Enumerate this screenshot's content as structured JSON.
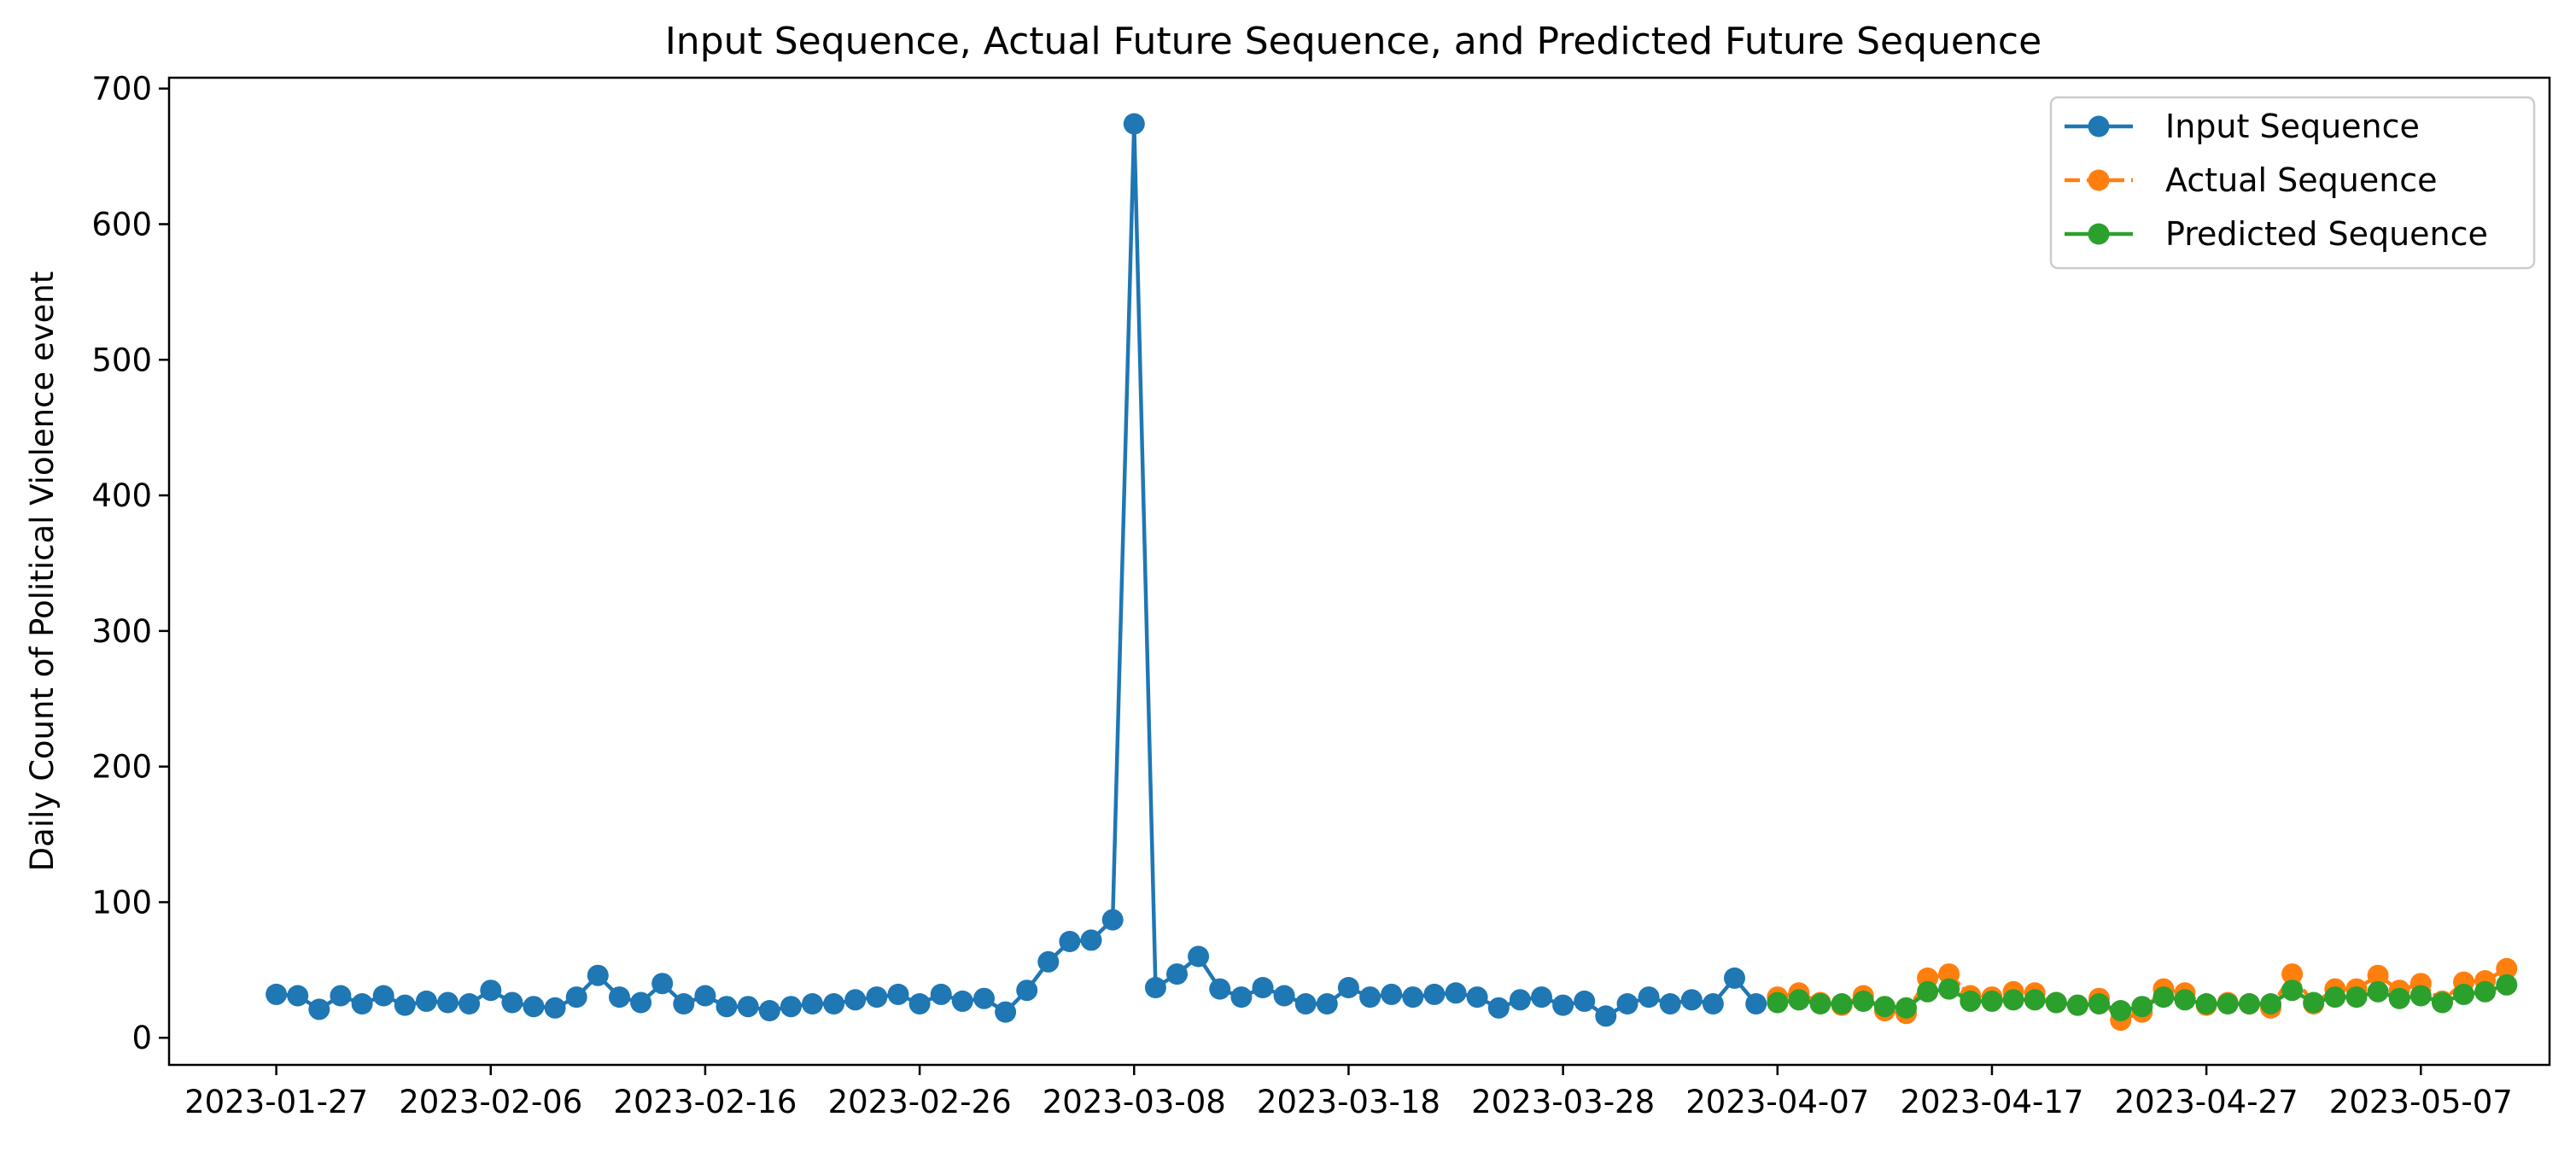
{
  "chart_data": {
    "type": "line",
    "title": "Input Sequence, Actual Future Sequence, and Predicted Future Sequence",
    "xlabel": "",
    "ylabel": "Daily Count of Political Violence event",
    "x_axis": {
      "type": "date",
      "range": [
        "2023-01-22",
        "2023-05-13"
      ],
      "tick_labels": [
        "2023-01-27",
        "2023-02-06",
        "2023-02-16",
        "2023-02-26",
        "2023-03-08",
        "2023-03-18",
        "2023-03-28",
        "2023-04-07",
        "2023-04-17",
        "2023-04-27",
        "2023-05-07"
      ]
    },
    "y_axis": {
      "range": [
        -20,
        708
      ],
      "ticks": [
        0,
        100,
        200,
        300,
        400,
        500,
        600,
        700
      ]
    },
    "legend": {
      "position": "top-right",
      "entries": [
        "Input Sequence",
        "Actual Sequence",
        "Predicted Sequence"
      ]
    },
    "grid": false,
    "series": [
      {
        "name": "Input Sequence",
        "color": "#1f77b4",
        "line_style": "solid",
        "marker": "circle",
        "start_date": "2023-01-27",
        "values": [
          32,
          31,
          21,
          31,
          25,
          31,
          24,
          27,
          26,
          25,
          35,
          26,
          23,
          22,
          30,
          46,
          30,
          26,
          40,
          25,
          31,
          23,
          23,
          20,
          23,
          25,
          25,
          28,
          30,
          32,
          25,
          32,
          27,
          29,
          19,
          35,
          56,
          71,
          72,
          87,
          674,
          37,
          47,
          60,
          36,
          30,
          37,
          31,
          25,
          25,
          37,
          30,
          32,
          30,
          32,
          33,
          30,
          22,
          28,
          30,
          24,
          27,
          16,
          25,
          30,
          25,
          28,
          25,
          44,
          25
        ]
      },
      {
        "name": "Actual Sequence",
        "color": "#ff7f0e",
        "line_style": "dashed",
        "marker": "circle",
        "start_date": "2023-04-07",
        "values": [
          30,
          33,
          26,
          24,
          31,
          20,
          18,
          44,
          47,
          31,
          30,
          34,
          33,
          26,
          24,
          29,
          13,
          19,
          36,
          33,
          24,
          26,
          25,
          22,
          47,
          25,
          36,
          36,
          46,
          35,
          40,
          27,
          41,
          42,
          51
        ]
      },
      {
        "name": "Predicted Sequence",
        "color": "#2ca02c",
        "line_style": "solid",
        "marker": "circle",
        "start_date": "2023-04-07",
        "values": [
          26,
          28,
          25,
          25,
          27,
          23,
          22,
          34,
          36,
          27,
          27,
          28,
          28,
          26,
          24,
          25,
          20,
          23,
          30,
          28,
          25,
          25,
          25,
          25,
          35,
          26,
          30,
          30,
          34,
          29,
          31,
          26,
          32,
          34,
          39
        ]
      }
    ]
  }
}
